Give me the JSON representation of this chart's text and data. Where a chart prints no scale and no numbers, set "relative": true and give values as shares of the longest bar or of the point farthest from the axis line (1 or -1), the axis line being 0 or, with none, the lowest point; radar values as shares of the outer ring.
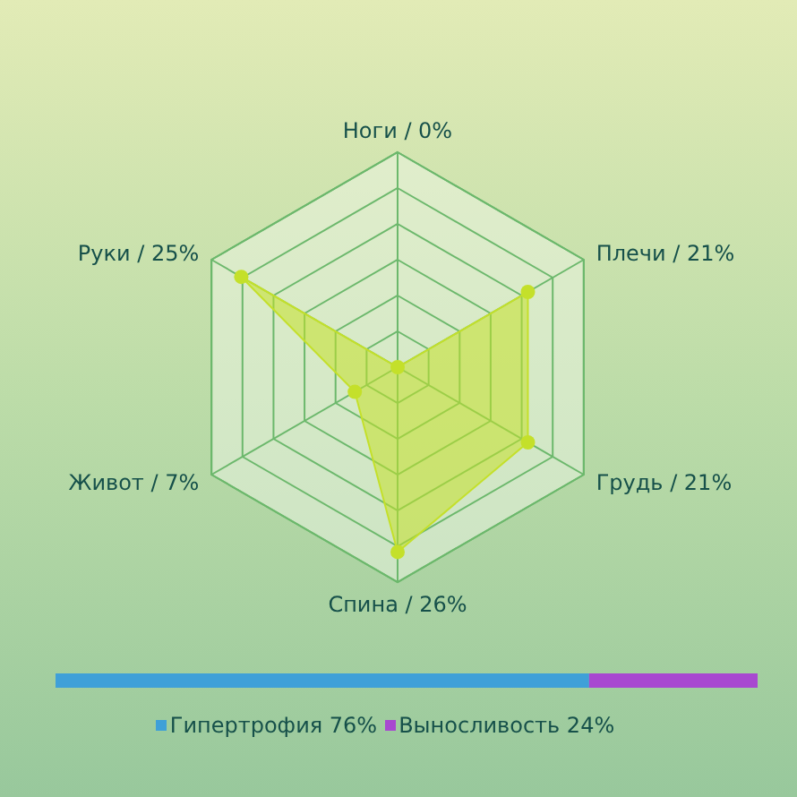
{
  "chart_data": [
    {
      "type": "radar",
      "relative": true,
      "categories": [
        "Ноги / 0%",
        "Плечи / 21%",
        "Грудь / 21%",
        "Спина / 26%",
        "Живот / 7%",
        "Руки / 25%"
      ],
      "series": [
        {
          "color": "#c4e02a",
          "values": [
            0,
            0.7,
            0.7,
            0.86,
            0.23,
            0.84
          ]
        }
      ],
      "grid": true,
      "marker": "circle"
    },
    {
      "type": "bar",
      "orientation": "horizontal",
      "stacked": true,
      "relative": true,
      "categories": [
        null
      ],
      "series": [
        {
          "name": "Гипертрофия 76%",
          "color": "#3fa0d8",
          "values": [
            0.76
          ]
        },
        {
          "name": "Выносливость 24%",
          "color": "#a848d0",
          "values": [
            0.24
          ]
        }
      ],
      "legend": "bottom"
    }
  ]
}
